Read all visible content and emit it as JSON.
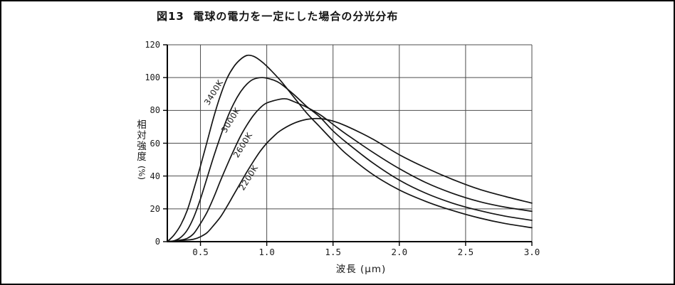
{
  "figure": {
    "title": "図13  電球の電力を一定にした場合の分光分布"
  },
  "chart": {
    "xlabel": "波長 (μm)",
    "ylabel_kanji": "相対強度",
    "ylabel_unit": "(%)"
  },
  "chart_data": {
    "type": "line",
    "title": "図13 電球の電力を一定にした場合の分光分布",
    "xlabel": "波長 (μm)",
    "ylabel": "相対強度 (%)",
    "xlim": [
      0.25,
      3.0
    ],
    "ylim": [
      0,
      120
    ],
    "x_ticks": [
      0.5,
      1.0,
      1.5,
      2.0,
      2.5,
      3.0
    ],
    "y_ticks": [
      0,
      20,
      40,
      60,
      80,
      100,
      120
    ],
    "x_tick_labels": [
      "0.5",
      "1.0",
      "1.5",
      "2.0",
      "2.5",
      "3.0"
    ],
    "y_tick_labels": [
      "0",
      "20",
      "40",
      "60",
      "80",
      "100",
      "120"
    ],
    "grid": true,
    "legend_position": "labels-along-curves",
    "line_color": "#141414",
    "series": [
      {
        "name": "3400K",
        "label": {
          "x": 0.6,
          "y": 91,
          "rotation": -58
        },
        "points": [
          [
            0.25,
            0
          ],
          [
            0.3,
            4
          ],
          [
            0.35,
            10
          ],
          [
            0.4,
            19
          ],
          [
            0.45,
            32
          ],
          [
            0.5,
            46
          ],
          [
            0.55,
            61
          ],
          [
            0.6,
            76
          ],
          [
            0.65,
            89
          ],
          [
            0.7,
            99.5
          ],
          [
            0.75,
            106.5
          ],
          [
            0.8,
            111
          ],
          [
            0.85,
            113.5
          ],
          [
            0.9,
            113
          ],
          [
            0.95,
            110.5
          ],
          [
            1.0,
            107
          ],
          [
            1.1,
            98.5
          ],
          [
            1.2,
            88.5
          ],
          [
            1.3,
            78.5
          ],
          [
            1.4,
            70
          ],
          [
            1.5,
            61.5
          ],
          [
            1.6,
            53.5
          ],
          [
            1.8,
            41
          ],
          [
            2.0,
            31.5
          ],
          [
            2.2,
            24.5
          ],
          [
            2.4,
            19
          ],
          [
            2.6,
            14.5
          ],
          [
            2.8,
            11
          ],
          [
            3.0,
            8.5
          ]
        ]
      },
      {
        "name": "3000K",
        "label": {
          "x": 0.73,
          "y": 74,
          "rotation": -58
        },
        "points": [
          [
            0.25,
            0
          ],
          [
            0.3,
            0.5
          ],
          [
            0.35,
            2.5
          ],
          [
            0.4,
            7
          ],
          [
            0.45,
            15
          ],
          [
            0.5,
            26
          ],
          [
            0.55,
            39
          ],
          [
            0.6,
            52
          ],
          [
            0.65,
            64
          ],
          [
            0.7,
            75
          ],
          [
            0.75,
            84
          ],
          [
            0.8,
            91
          ],
          [
            0.85,
            96
          ],
          [
            0.9,
            99
          ],
          [
            0.97,
            100
          ],
          [
            1.05,
            98.5
          ],
          [
            1.1,
            96.5
          ],
          [
            1.2,
            90
          ],
          [
            1.3,
            82.5
          ],
          [
            1.4,
            76
          ],
          [
            1.5,
            67.5
          ],
          [
            1.6,
            60.5
          ],
          [
            1.8,
            48
          ],
          [
            2.0,
            37.5
          ],
          [
            2.2,
            29.5
          ],
          [
            2.4,
            23.5
          ],
          [
            2.6,
            19
          ],
          [
            2.8,
            15.5
          ],
          [
            3.0,
            13
          ]
        ]
      },
      {
        "name": "2600K",
        "label": {
          "x": 0.82,
          "y": 59,
          "rotation": -58
        },
        "points": [
          [
            0.25,
            0
          ],
          [
            0.35,
            1
          ],
          [
            0.4,
            2
          ],
          [
            0.45,
            5
          ],
          [
            0.5,
            11
          ],
          [
            0.55,
            18
          ],
          [
            0.6,
            27
          ],
          [
            0.65,
            37
          ],
          [
            0.7,
            46.5
          ],
          [
            0.75,
            55.5
          ],
          [
            0.8,
            64
          ],
          [
            0.85,
            71
          ],
          [
            0.9,
            77
          ],
          [
            0.95,
            81.5
          ],
          [
            1.0,
            84.5
          ],
          [
            1.1,
            86.8
          ],
          [
            1.15,
            87
          ],
          [
            1.2,
            85.5
          ],
          [
            1.3,
            82
          ],
          [
            1.4,
            77.5
          ],
          [
            1.5,
            71.5
          ],
          [
            1.6,
            65.5
          ],
          [
            1.8,
            54.5
          ],
          [
            2.0,
            44.5
          ],
          [
            2.2,
            36
          ],
          [
            2.4,
            29.5
          ],
          [
            2.6,
            24.5
          ],
          [
            2.8,
            21
          ],
          [
            3.0,
            18.5
          ]
        ]
      },
      {
        "name": "2200K",
        "label": {
          "x": 0.86,
          "y": 39,
          "rotation": -58
        },
        "points": [
          [
            0.25,
            0
          ],
          [
            0.4,
            1
          ],
          [
            0.45,
            1.5
          ],
          [
            0.5,
            3
          ],
          [
            0.55,
            5.5
          ],
          [
            0.6,
            10
          ],
          [
            0.65,
            15
          ],
          [
            0.7,
            21.5
          ],
          [
            0.75,
            28.5
          ],
          [
            0.8,
            35.5
          ],
          [
            0.85,
            42.5
          ],
          [
            0.9,
            49
          ],
          [
            0.95,
            55
          ],
          [
            1.0,
            60
          ],
          [
            1.05,
            64
          ],
          [
            1.1,
            67.5
          ],
          [
            1.2,
            72
          ],
          [
            1.3,
            74.5
          ],
          [
            1.4,
            75
          ],
          [
            1.5,
            73.5
          ],
          [
            1.6,
            70.5
          ],
          [
            1.8,
            62.5
          ],
          [
            2.0,
            53
          ],
          [
            2.2,
            45
          ],
          [
            2.4,
            38
          ],
          [
            2.6,
            32
          ],
          [
            2.8,
            27.5
          ],
          [
            3.0,
            23.5
          ]
        ]
      }
    ]
  }
}
